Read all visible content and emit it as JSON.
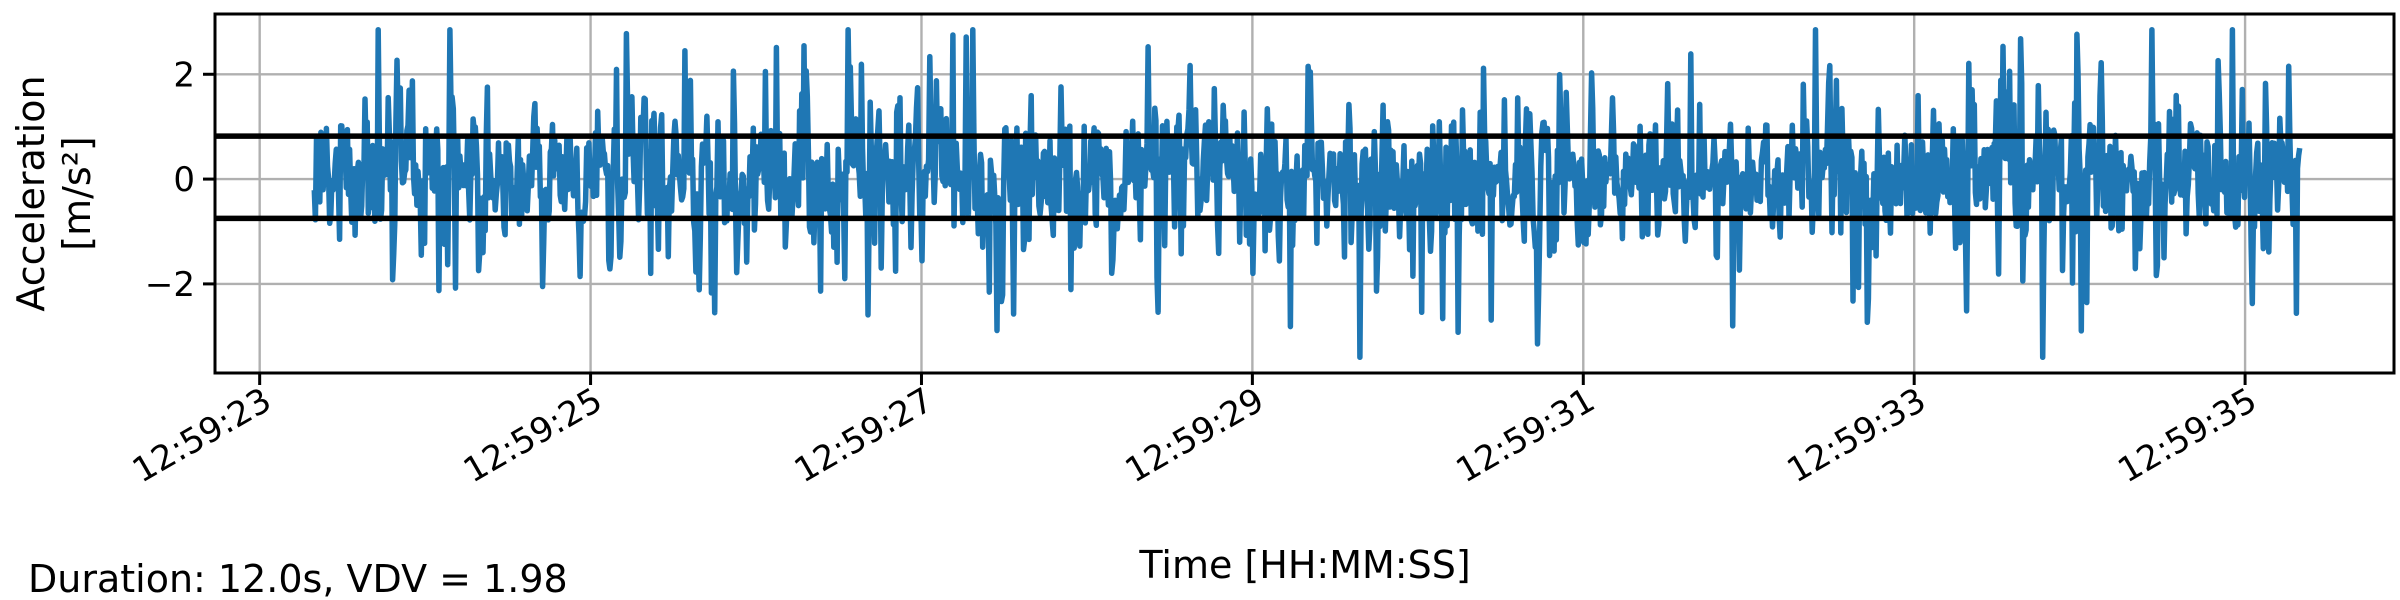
{
  "chart_data": {
    "type": "line",
    "title": "",
    "xlabel": "Time [HH:MM:SS]",
    "ylabel_line1": "Acceleration",
    "ylabel_line2": "[m/s²]",
    "annotation": "Duration: 12.0s, VDV = 1.98",
    "x_range_seconds": [
      -0.27,
      12.9
    ],
    "ylim": [
      -3.7,
      3.15
    ],
    "x_ticks": [
      "12:59:23",
      "12:59:25",
      "12:59:27",
      "12:59:29",
      "12:59:31",
      "12:59:33",
      "12:59:35"
    ],
    "y_ticks": [
      "−2",
      "0",
      "2"
    ],
    "y_tick_values": [
      -2,
      0,
      2
    ],
    "threshold_lines": [
      0.82,
      -0.75
    ],
    "signal": {
      "start": "12:59:23.33",
      "end": "12:59:35.33",
      "duration_s": 12.0,
      "approx_range": [
        -3.4,
        2.85
      ],
      "color": "#1f77b4"
    },
    "grid": true,
    "legend": "none",
    "colors": {
      "signal": "#1f77b4",
      "threshold": "#000000",
      "grid": "#b0b0b0"
    }
  }
}
